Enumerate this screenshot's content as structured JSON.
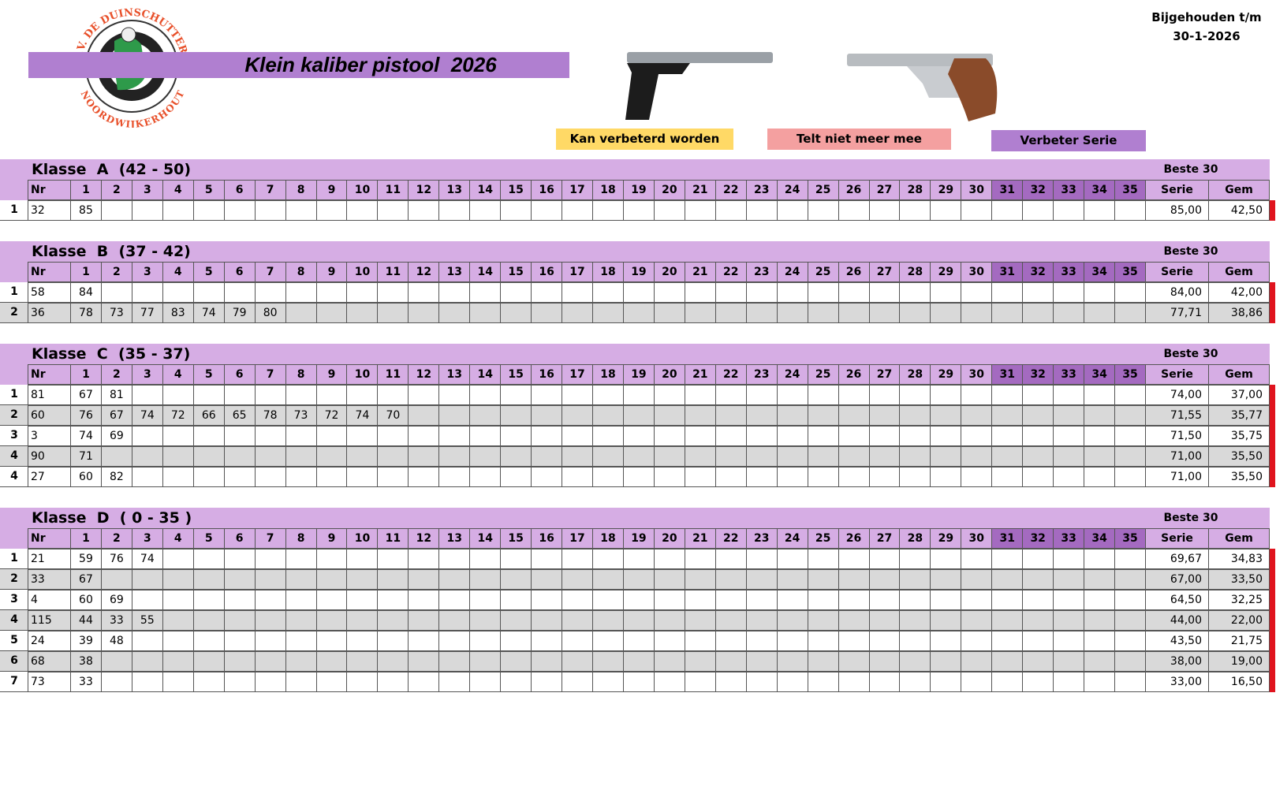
{
  "header": {
    "logo_top": "S.V. DE DUINSCHUTTERS",
    "logo_bottom": "NOORDWIJKERHOUT",
    "title": "Klein kaliber pistool  2026",
    "updated_label": "Bijgehouden t/m",
    "updated_date": "30-1-2026"
  },
  "legend": [
    "Kan verbeterd worden",
    "Telt niet meer mee",
    "Verbeter Serie"
  ],
  "best_label": "Beste 30",
  "columns": [
    "Nr",
    "1",
    "2",
    "3",
    "4",
    "5",
    "6",
    "7",
    "8",
    "9",
    "10",
    "11",
    "12",
    "13",
    "14",
    "15",
    "16",
    "17",
    "18",
    "19",
    "20",
    "21",
    "22",
    "23",
    "24",
    "25",
    "26",
    "27",
    "28",
    "29",
    "30",
    "31",
    "32",
    "33",
    "34",
    "35",
    "Serie",
    "Gem"
  ],
  "sections": [
    {
      "title": "Klasse  A  (42 - 50)",
      "rows": [
        {
          "rank": 1,
          "nr": 32,
          "scores": [
            85
          ],
          "serie": "85,00",
          "gem": "42,50"
        }
      ]
    },
    {
      "title": "Klasse  B  (37 - 42)",
      "rows": [
        {
          "rank": 1,
          "nr": 58,
          "scores": [
            84
          ],
          "serie": "84,00",
          "gem": "42,00"
        },
        {
          "rank": 2,
          "nr": 36,
          "scores": [
            78,
            73,
            77,
            83,
            74,
            79,
            80
          ],
          "serie": "77,71",
          "gem": "38,86"
        }
      ]
    },
    {
      "title": "Klasse  C  (35 - 37)",
      "rows": [
        {
          "rank": 1,
          "nr": 81,
          "scores": [
            67,
            81
          ],
          "serie": "74,00",
          "gem": "37,00"
        },
        {
          "rank": 2,
          "nr": 60,
          "scores": [
            76,
            67,
            74,
            72,
            66,
            65,
            78,
            73,
            72,
            74,
            70
          ],
          "serie": "71,55",
          "gem": "35,77"
        },
        {
          "rank": 3,
          "nr": 3,
          "scores": [
            74,
            69
          ],
          "serie": "71,50",
          "gem": "35,75"
        },
        {
          "rank": 4,
          "nr": 90,
          "scores": [
            71
          ],
          "serie": "71,00",
          "gem": "35,50"
        },
        {
          "rank": 4,
          "nr": 27,
          "scores": [
            60,
            82
          ],
          "serie": "71,00",
          "gem": "35,50"
        }
      ]
    },
    {
      "title": "Klasse  D  ( 0 - 35 )",
      "rows": [
        {
          "rank": 1,
          "nr": 21,
          "scores": [
            59,
            76,
            74
          ],
          "serie": "69,67",
          "gem": "34,83"
        },
        {
          "rank": 2,
          "nr": 33,
          "scores": [
            67
          ],
          "serie": "67,00",
          "gem": "33,50"
        },
        {
          "rank": 3,
          "nr": 4,
          "scores": [
            60,
            69
          ],
          "serie": "64,50",
          "gem": "32,25"
        },
        {
          "rank": 4,
          "nr": 115,
          "scores": [
            44,
            33,
            55
          ],
          "serie": "44,00",
          "gem": "22,00"
        },
        {
          "rank": 5,
          "nr": 24,
          "scores": [
            39,
            48
          ],
          "serie": "43,50",
          "gem": "21,75"
        },
        {
          "rank": 6,
          "nr": 68,
          "scores": [
            38
          ],
          "serie": "38,00",
          "gem": "19,00"
        },
        {
          "rank": 7,
          "nr": 73,
          "scores": [
            33
          ],
          "serie": "33,00",
          "gem": "16,50"
        }
      ]
    }
  ]
}
